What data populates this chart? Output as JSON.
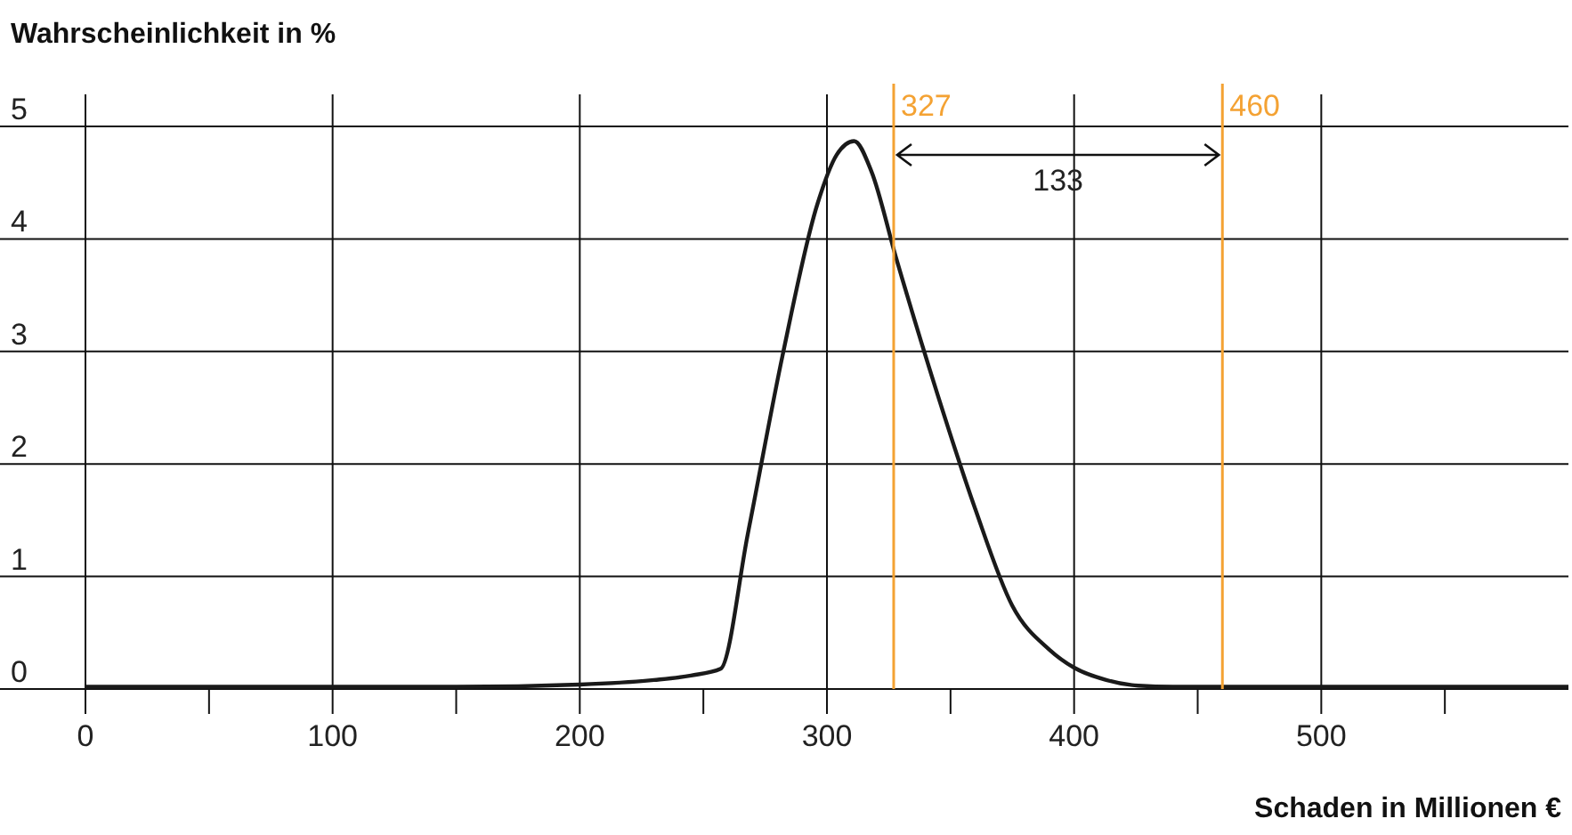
{
  "chart_data": {
    "type": "line",
    "ylabel": "Wahrscheinlichkeit in %",
    "xlabel": "Schaden in Millionen €",
    "xlim": [
      0,
      600
    ],
    "ylim": [
      0,
      5
    ],
    "xticks": [
      0,
      {
        "value": 50,
        "label": null
      },
      100,
      {
        "value": 150,
        "label": null
      },
      200,
      {
        "value": 250,
        "label": null
      },
      300,
      {
        "value": 350,
        "label": null
      },
      400,
      {
        "value": 450,
        "label": null
      },
      500,
      {
        "value": 550,
        "label": null
      }
    ],
    "yticks": [
      0,
      1,
      2,
      3,
      4,
      5
    ],
    "grid": true,
    "line_style": "solid",
    "series": [
      {
        "color": "#1a1a1a",
        "x": [
          0,
          50,
          100,
          150,
          200,
          230,
          245,
          257,
          268,
          282,
          296,
          304,
          311,
          318,
          328,
          345,
          360,
          375,
          390,
          400,
          413,
          426,
          440,
          480,
          540,
          600
        ],
        "values": [
          0.02,
          0.02,
          0.02,
          0.02,
          0.04,
          0.08,
          0.12,
          0.18,
          1.38,
          2.96,
          4.3,
          4.75,
          4.87,
          4.6,
          3.83,
          2.6,
          1.6,
          0.74,
          0.35,
          0.19,
          0.08,
          0.03,
          0.02,
          0.02,
          0.02,
          0.02
        ]
      }
    ],
    "ref_lines": [
      {
        "axis": "x",
        "value": 327,
        "label": "327",
        "color": "#f4a233"
      },
      {
        "axis": "x",
        "value": 460,
        "label": "460",
        "color": "#f4a233"
      }
    ],
    "annotations": [
      "133"
    ]
  }
}
